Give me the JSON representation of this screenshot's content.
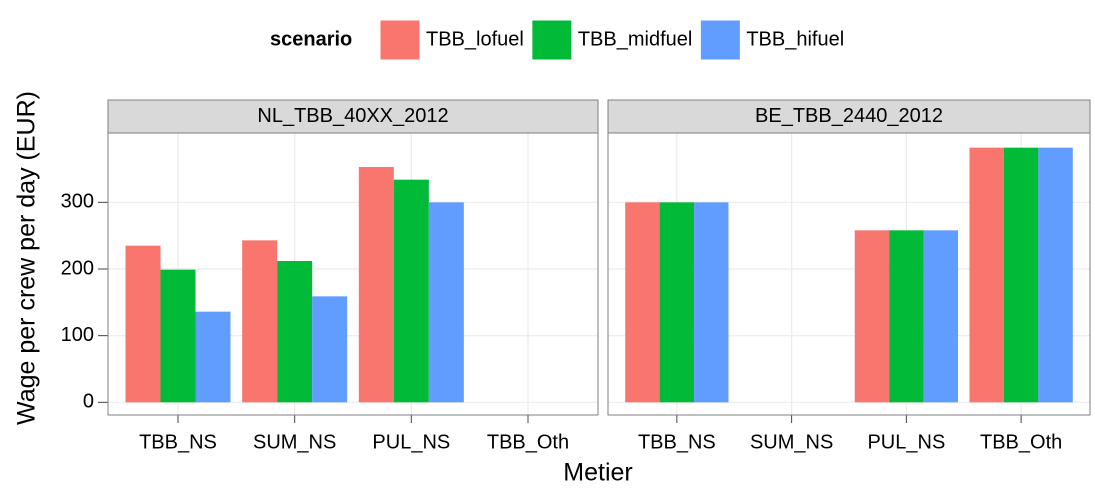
{
  "chart_data": {
    "type": "bar",
    "legend_title": "scenario",
    "legend_position": "top",
    "x_label": "Metier",
    "y_label": "Wage per crew per day (EUR)",
    "categories": [
      "TBB_NS",
      "SUM_NS",
      "PUL_NS",
      "TBB_Oth"
    ],
    "series": [
      {
        "name": "TBB_lofuel",
        "color": "#f8766d"
      },
      {
        "name": "TBB_midfuel",
        "color": "#00ba38"
      },
      {
        "name": "TBB_hifuel",
        "color": "#619cff"
      }
    ],
    "facets": [
      {
        "title": "NL_TBB_40XX_2012",
        "series": [
          {
            "values": [
              235,
              243,
              353,
              null
            ]
          },
          {
            "values": [
              199,
              212,
              334,
              null
            ]
          },
          {
            "values": [
              136,
              159,
              300,
              null
            ]
          }
        ]
      },
      {
        "title": "BE_TBB_2440_2012",
        "series": [
          {
            "values": [
              300,
              null,
              258,
              382
            ]
          },
          {
            "values": [
              300,
              null,
              258,
              382
            ]
          },
          {
            "values": [
              300,
              null,
              258,
              382
            ]
          }
        ]
      }
    ],
    "ylim": [
      -19,
      404
    ],
    "yticks": [
      0,
      100,
      200,
      300
    ],
    "grid": true
  }
}
